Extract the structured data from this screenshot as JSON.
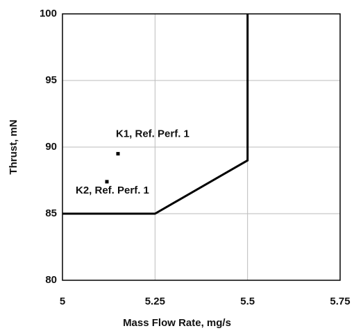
{
  "chart_data": {
    "type": "line",
    "x_label": "Mass Flow Rate, mg/s",
    "y_label": "Thrust, mN",
    "xlim": [
      5,
      5.75
    ],
    "xticks": [
      5,
      5.25,
      5.5,
      5.75
    ],
    "ylim": [
      80,
      100
    ],
    "yticks": [
      80,
      85,
      90,
      95,
      100
    ],
    "grid": true,
    "series": [
      {
        "type": "line",
        "color": "#000000",
        "x": [
          5,
          5.25,
          5.5,
          5.5
        ],
        "values": [
          85,
          85,
          89,
          100
        ]
      },
      {
        "type": "scatter",
        "color": "#000000",
        "x": [
          5.15,
          5.12
        ],
        "values": [
          89.5,
          87.4
        ]
      }
    ],
    "annotations": [
      {
        "text": "K1, Ref. Perf. 1"
      },
      {
        "text": "K2, Ref. Perf. 1"
      }
    ]
  }
}
